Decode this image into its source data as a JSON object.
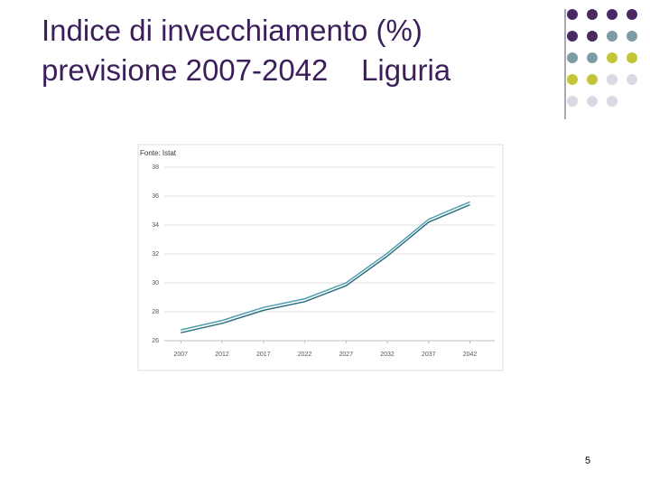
{
  "title": [
    "Indice di invecchiamento (%)",
    "previsione 2007-2042    Liguria"
  ],
  "page_number": "5",
  "chart_data": {
    "type": "line",
    "source": "Fonte: Istat",
    "x": [
      2007,
      2012,
      2017,
      2022,
      2027,
      2032,
      2037,
      2042
    ],
    "series": [
      {
        "color": "#4e9fb0",
        "values": [
          26.75,
          27.4,
          28.3,
          28.9,
          30,
          32.05,
          34.4,
          35.6
        ]
      },
      {
        "color": "#2f6f80",
        "values": [
          26.55,
          27.2,
          28.1,
          28.7,
          29.8,
          31.85,
          34.2,
          35.4
        ]
      }
    ],
    "xlim": [
      2005,
      2045
    ],
    "xticks": [
      2007,
      2012,
      2017,
      2022,
      2027,
      2032,
      2037,
      2042
    ],
    "ylim": [
      26,
      38
    ],
    "yticks": [
      26,
      28,
      30,
      32,
      34,
      36,
      38
    ],
    "grid": true
  }
}
